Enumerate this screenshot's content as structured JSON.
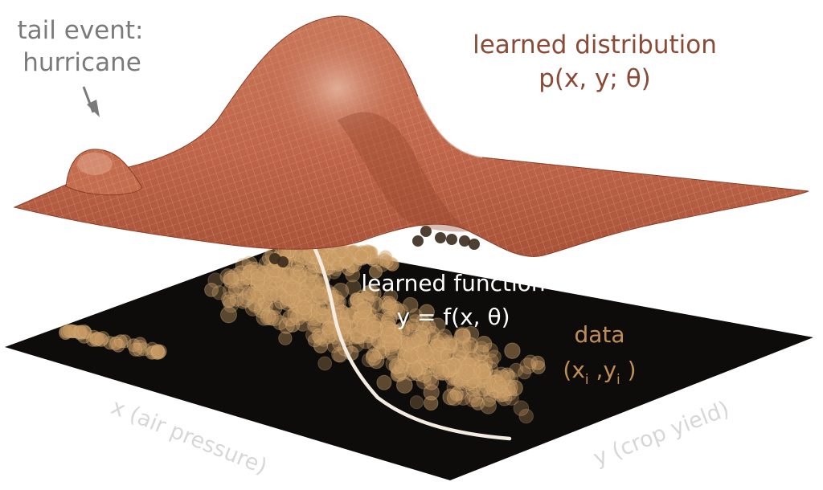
{
  "annotations": {
    "tail_event_line1": "tail event:",
    "tail_event_line2": "hurricane",
    "distribution_line1": "learned distribution",
    "distribution_line2": "p(x, y; θ)",
    "function_line1": "learned function",
    "function_line2": "y = f(x, θ)",
    "data_line1": "data",
    "data_open": "(x",
    "data_sub_i1": "i",
    "data_comma": " ,y",
    "data_sub_i2": "i",
    "data_close": " )"
  },
  "axes": {
    "x_label": "x (air pressure)",
    "y_label": "y (crop yield)"
  },
  "colors": {
    "surface": "#c2694a",
    "surface_dark": "#8a3c24",
    "floor": "#0d0c0a",
    "data_points": "#c89a64",
    "curve": "#f4ece0",
    "text_gray": "#7a7a7a",
    "text_brown": "#8a4a36",
    "text_tan": "#c18f55",
    "text_white": "#ffffff",
    "axis_label": "#d7d7d7"
  }
}
